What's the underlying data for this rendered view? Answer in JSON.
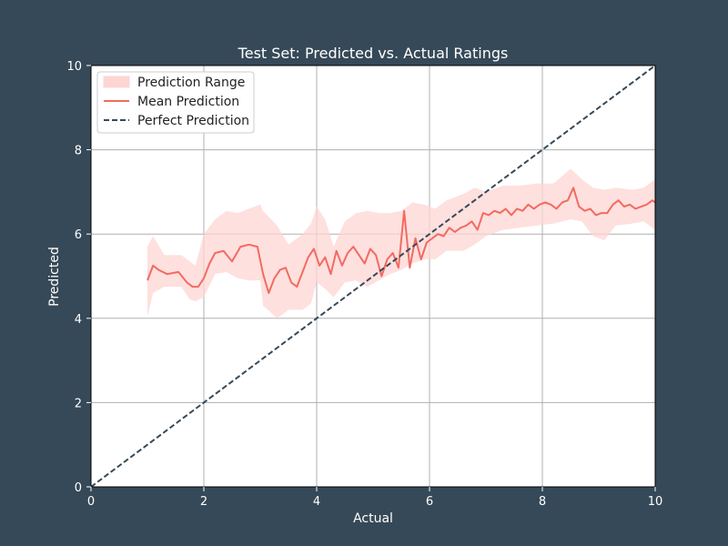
{
  "chart_data": {
    "type": "line",
    "title": "Test Set: Predicted vs. Actual Ratings",
    "xlabel": "Actual",
    "ylabel": "Predicted",
    "xlim": [
      0,
      10
    ],
    "ylim": [
      0,
      10
    ],
    "x_ticks": [
      0,
      2,
      4,
      6,
      8,
      10
    ],
    "y_ticks": [
      0,
      2,
      4,
      6,
      8,
      10
    ],
    "grid": true,
    "legend_position": "top-left",
    "colors": {
      "background": "#364958",
      "plot_area": "#ffffff",
      "mean_line": "#f26b61",
      "range_fill": "#fdd5d3",
      "perfect_line": "#364958",
      "grid": "#b0b0b0"
    },
    "series": [
      {
        "name": "Prediction Range",
        "kind": "band",
        "x": [
          1.0,
          1.1,
          1.3,
          1.6,
          1.75,
          1.85,
          2.0,
          2.2,
          2.4,
          2.6,
          2.8,
          3.0,
          3.05,
          3.3,
          3.5,
          3.75,
          3.9,
          4.0,
          4.15,
          4.3,
          4.5,
          4.7,
          4.9,
          5.1,
          5.3,
          5.5,
          5.7,
          5.9,
          6.1,
          6.3,
          6.6,
          6.8,
          7.0,
          7.3,
          7.6,
          7.9,
          8.2,
          8.5,
          8.7,
          8.9,
          9.1,
          9.3,
          9.6,
          9.8,
          10.0
        ],
        "lower": [
          4.05,
          4.6,
          4.75,
          4.75,
          4.45,
          4.4,
          4.5,
          5.05,
          5.1,
          4.95,
          4.9,
          4.9,
          4.3,
          4.0,
          4.2,
          4.2,
          4.35,
          4.85,
          4.7,
          4.5,
          4.85,
          4.9,
          4.75,
          4.9,
          5.05,
          5.15,
          5.3,
          5.4,
          5.4,
          5.6,
          5.6,
          5.75,
          5.95,
          6.1,
          6.15,
          6.2,
          6.25,
          6.35,
          6.3,
          5.95,
          5.85,
          6.2,
          6.25,
          6.3,
          6.1
        ],
        "upper": [
          5.7,
          5.95,
          5.5,
          5.5,
          5.35,
          5.25,
          6.0,
          6.35,
          6.55,
          6.5,
          6.6,
          6.7,
          6.55,
          6.2,
          5.75,
          6.0,
          6.25,
          6.65,
          6.35,
          5.7,
          6.3,
          6.5,
          6.55,
          6.5,
          6.5,
          6.55,
          6.75,
          6.7,
          6.6,
          6.8,
          6.95,
          7.1,
          7.0,
          7.15,
          7.15,
          7.2,
          7.2,
          7.55,
          7.3,
          7.1,
          7.05,
          7.1,
          7.05,
          7.1,
          7.3
        ]
      },
      {
        "name": "Mean Prediction",
        "kind": "line",
        "x": [
          1.0,
          1.1,
          1.2,
          1.35,
          1.55,
          1.7,
          1.8,
          1.9,
          2.0,
          2.1,
          2.2,
          2.35,
          2.5,
          2.65,
          2.8,
          2.95,
          3.05,
          3.15,
          3.25,
          3.35,
          3.45,
          3.55,
          3.65,
          3.75,
          3.85,
          3.95,
          4.05,
          4.15,
          4.25,
          4.35,
          4.45,
          4.55,
          4.65,
          4.75,
          4.85,
          4.95,
          5.05,
          5.15,
          5.25,
          5.35,
          5.45,
          5.55,
          5.65,
          5.75,
          5.85,
          5.95,
          6.05,
          6.15,
          6.25,
          6.35,
          6.45,
          6.55,
          6.65,
          6.75,
          6.85,
          6.95,
          7.05,
          7.15,
          7.25,
          7.35,
          7.45,
          7.55,
          7.65,
          7.75,
          7.85,
          7.95,
          8.05,
          8.15,
          8.25,
          8.35,
          8.45,
          8.55,
          8.65,
          8.75,
          8.85,
          8.95,
          9.05,
          9.15,
          9.25,
          9.35,
          9.45,
          9.55,
          9.65,
          9.75,
          9.85,
          9.95,
          10.0
        ],
        "y": [
          4.9,
          5.25,
          5.15,
          5.05,
          5.1,
          4.85,
          4.75,
          4.75,
          4.95,
          5.3,
          5.55,
          5.6,
          5.35,
          5.7,
          5.75,
          5.7,
          5.05,
          4.6,
          4.95,
          5.15,
          5.2,
          4.85,
          4.75,
          5.1,
          5.45,
          5.65,
          5.25,
          5.45,
          5.05,
          5.6,
          5.25,
          5.55,
          5.7,
          5.5,
          5.3,
          5.65,
          5.5,
          5.0,
          5.4,
          5.55,
          5.2,
          6.55,
          5.2,
          5.9,
          5.4,
          5.8,
          5.9,
          6.0,
          5.95,
          6.15,
          6.05,
          6.15,
          6.2,
          6.3,
          6.1,
          6.5,
          6.45,
          6.55,
          6.5,
          6.6,
          6.45,
          6.6,
          6.55,
          6.7,
          6.6,
          6.7,
          6.75,
          6.7,
          6.6,
          6.75,
          6.8,
          7.1,
          6.65,
          6.55,
          6.6,
          6.45,
          6.5,
          6.5,
          6.7,
          6.8,
          6.65,
          6.7,
          6.6,
          6.65,
          6.7,
          6.8,
          6.75
        ]
      },
      {
        "name": "Perfect Prediction",
        "kind": "dashed-line",
        "x": [
          0,
          10
        ],
        "y": [
          0,
          10
        ]
      }
    ]
  }
}
